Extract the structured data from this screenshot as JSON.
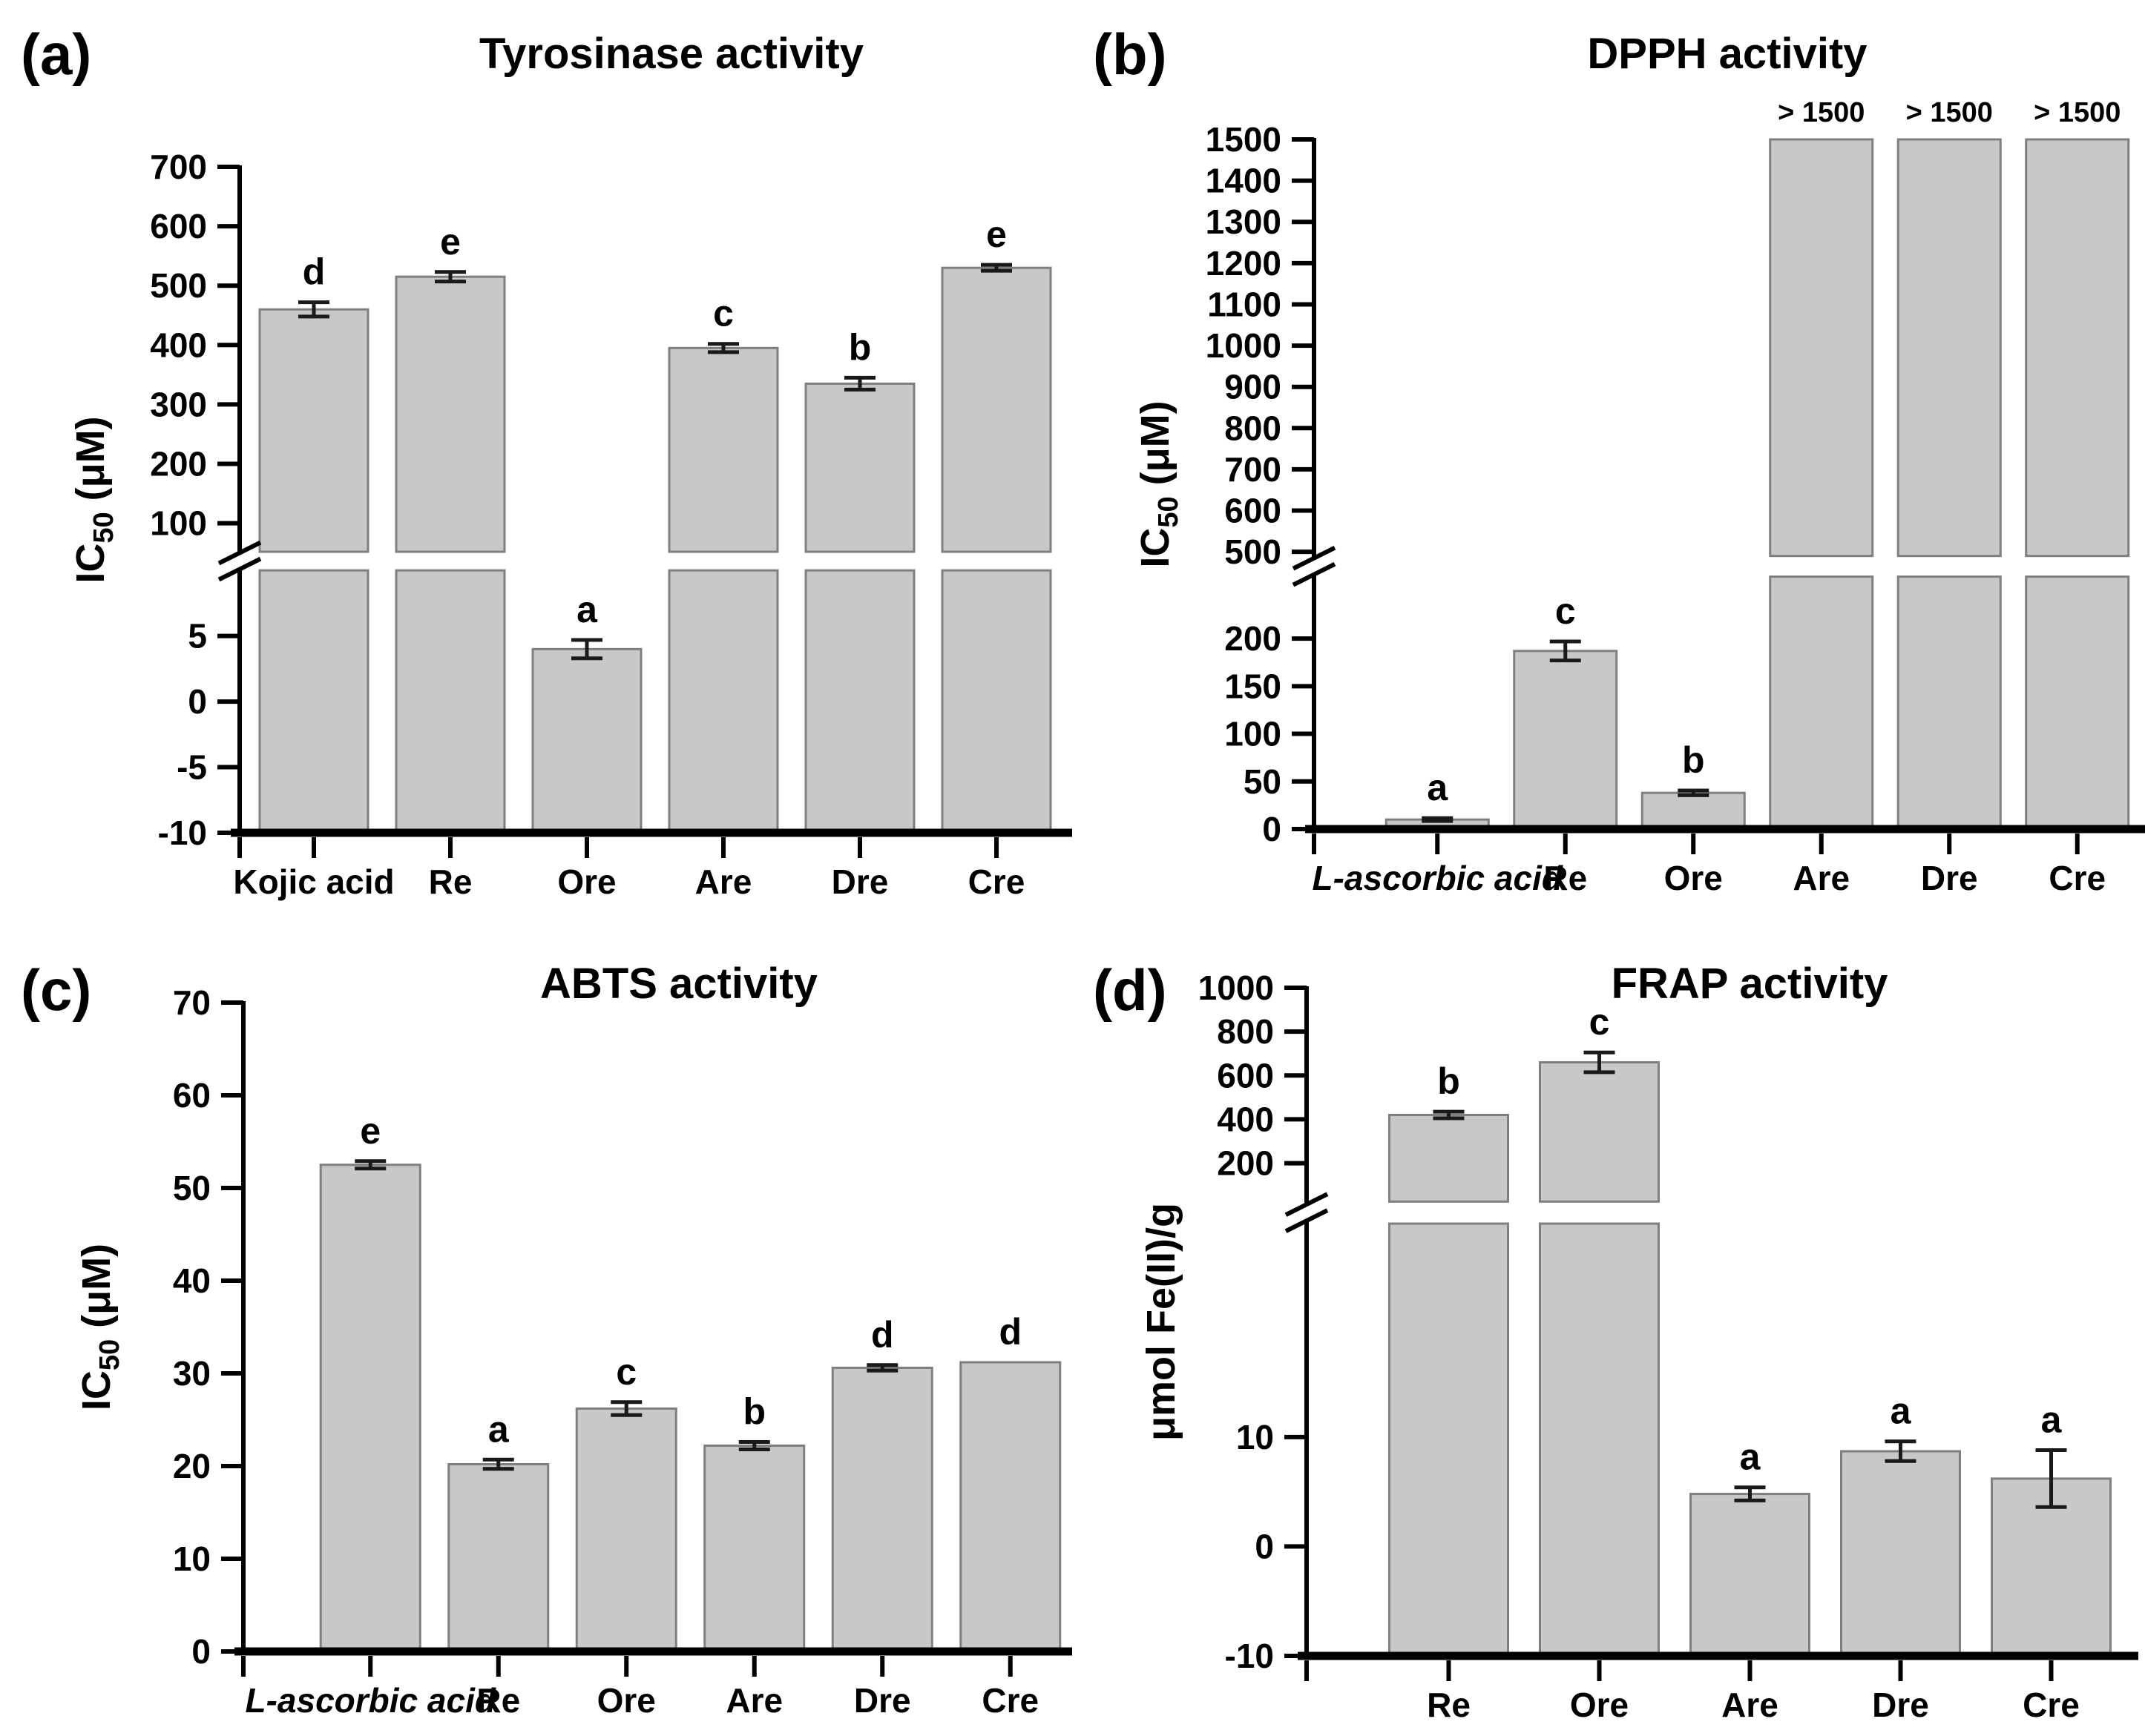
{
  "figure": {
    "background": "#ffffff",
    "description": "Four-panel bar chart figure of enzymatic and antioxidant activities"
  },
  "colors": {
    "bar_fill": "#c8c8c8",
    "bar_stroke": "#7f7f7f",
    "axis": "#000000",
    "text": "#000000",
    "error_bar": "#1a1a1a"
  },
  "chart_data": [
    {
      "id": "a",
      "type": "bar",
      "panel_label": "(a)",
      "title": "Tyrosinase activity",
      "ylabel": {
        "prefix": "IC",
        "sub": "50",
        "suffix": " (μM)"
      },
      "axis": {
        "type": "broken",
        "upper": {
          "min": 52,
          "max": 700,
          "ticks": [
            700,
            600,
            500,
            400,
            300,
            200,
            100
          ],
          "frac": 0.578
        },
        "lower": {
          "min": -10,
          "max": 10,
          "ticks": [
            5,
            0,
            -5,
            -10
          ]
        },
        "gap_frac": 0.028
      },
      "categories": [
        "Kojic acid",
        "Re",
        "Ore",
        "Are",
        "Dre",
        "Cre"
      ],
      "bars": [
        {
          "category": "Kojic acid",
          "value": 460,
          "err": 12,
          "letter": "d"
        },
        {
          "category": "Re",
          "value": 515,
          "err": 8,
          "letter": "e"
        },
        {
          "category": "Ore",
          "value": 4,
          "err": 0.7,
          "letter": "a"
        },
        {
          "category": "Are",
          "value": 395,
          "err": 7,
          "letter": "c"
        },
        {
          "category": "Dre",
          "value": 335,
          "err": 10,
          "letter": "b"
        },
        {
          "category": "Cre",
          "value": 530,
          "err": 5,
          "letter": "e"
        }
      ]
    },
    {
      "id": "b",
      "type": "bar",
      "panel_label": "(b)",
      "title": "DPPH activity",
      "ylabel": {
        "prefix": "IC",
        "sub": "50",
        "suffix": " (μM)"
      },
      "axis": {
        "type": "broken",
        "upper": {
          "min": 490,
          "max": 1500,
          "ticks": [
            1500,
            1400,
            1300,
            1200,
            1100,
            1000,
            900,
            800,
            700,
            600,
            500
          ],
          "frac": 0.604
        },
        "lower": {
          "min": 0,
          "max": 265,
          "ticks": [
            200,
            150,
            100,
            50,
            0
          ]
        },
        "gap_frac": 0.03
      },
      "categories": [
        "L-ascorbic acid",
        "Re",
        "Ore",
        "Are",
        "Dre",
        "Cre"
      ],
      "bars": [
        {
          "category": "L-ascorbic acid",
          "italic": true,
          "value": 10,
          "err": 1.5,
          "letter": "a"
        },
        {
          "category": "Re",
          "value": 187,
          "err": 10,
          "letter": "c"
        },
        {
          "category": "Ore",
          "value": 38,
          "err": 2.5,
          "letter": "b"
        },
        {
          "category": "Are",
          "capped": true,
          "cap_label": "> 1500"
        },
        {
          "category": "Dre",
          "capped": true,
          "cap_label": "> 1500"
        },
        {
          "category": "Cre",
          "capped": true,
          "cap_label": "> 1500"
        }
      ]
    },
    {
      "id": "c",
      "type": "bar",
      "panel_label": "(c)",
      "title": "ABTS activity",
      "ylabel": {
        "prefix": "IC",
        "sub": "50",
        "suffix": " (μM)"
      },
      "axis": {
        "type": "single",
        "min": 0,
        "max": 70,
        "ticks": [
          70,
          60,
          50,
          40,
          30,
          20,
          10,
          0
        ]
      },
      "categories": [
        "L-ascorbic acid",
        "Re",
        "Ore",
        "Are",
        "Dre",
        "Cre"
      ],
      "bars": [
        {
          "category": "L-ascorbic acid",
          "italic": true,
          "value": 52.5,
          "err": 0.4,
          "letter": "e"
        },
        {
          "category": "Re",
          "value": 20.2,
          "err": 0.5,
          "letter": "a"
        },
        {
          "category": "Ore",
          "value": 26.2,
          "err": 0.7,
          "letter": "c"
        },
        {
          "category": "Are",
          "value": 22.2,
          "err": 0.4,
          "letter": "b"
        },
        {
          "category": "Dre",
          "value": 30.6,
          "err": 0.3,
          "letter": "d"
        },
        {
          "category": "Cre",
          "value": 31.2,
          "err": null,
          "letter": "d"
        }
      ]
    },
    {
      "id": "d",
      "type": "bar",
      "panel_label": "(d)",
      "title": "FRAP activity",
      "ylabel": {
        "text": "μmol Fe(II)/g"
      },
      "axis": {
        "type": "broken",
        "upper": {
          "min": 25,
          "max": 1000,
          "ticks": [
            1000,
            800,
            600,
            400,
            200
          ],
          "frac": 0.32
        },
        "lower": {
          "min": -10,
          "max": 29.5,
          "ticks": [
            10,
            0,
            -10
          ]
        },
        "gap_frac": 0.033
      },
      "categories": [
        "Re",
        "Ore",
        "Are",
        "Dre",
        "Cre"
      ],
      "bars": [
        {
          "category": "Re",
          "value": 420,
          "err": 15,
          "letter": "b"
        },
        {
          "category": "Ore",
          "value": 660,
          "err": 45,
          "letter": "c"
        },
        {
          "category": "Are",
          "value": 4.8,
          "err": 0.6,
          "letter": "a"
        },
        {
          "category": "Dre",
          "value": 8.7,
          "err": 0.9,
          "letter": "a"
        },
        {
          "category": "Cre",
          "value": 6.2,
          "err": 2.6,
          "letter": "a"
        }
      ]
    }
  ]
}
